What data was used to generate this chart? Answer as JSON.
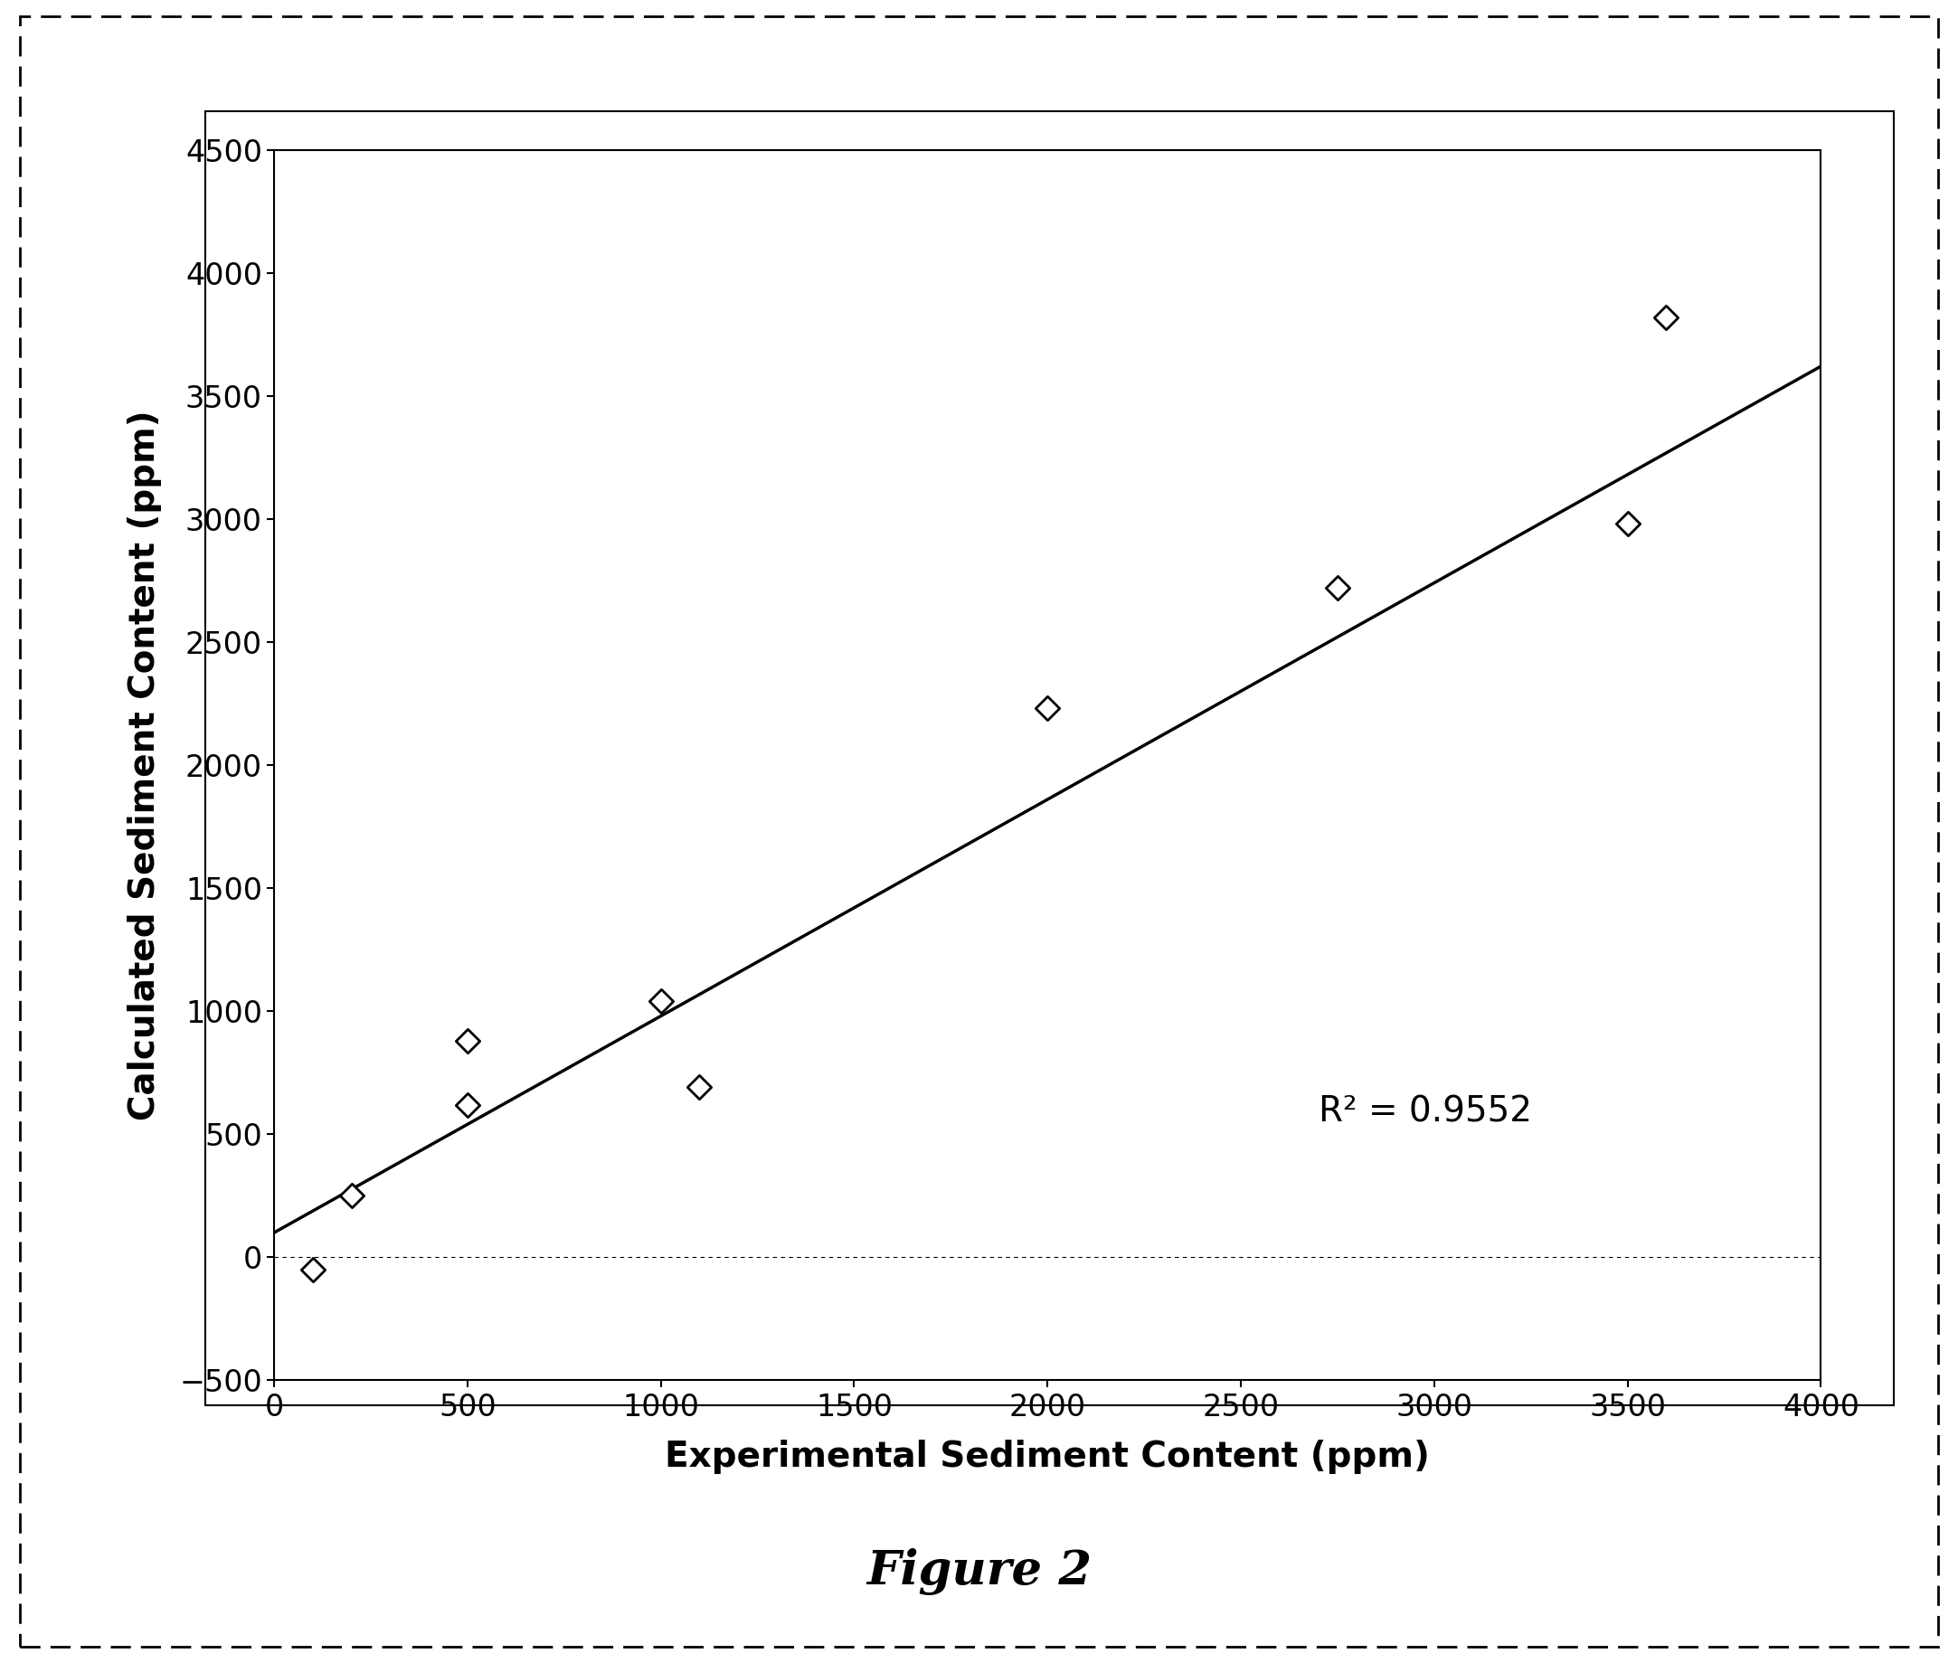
{
  "scatter_x": [
    100,
    200,
    500,
    500,
    1000,
    1100,
    2000,
    2750,
    3500,
    3600
  ],
  "scatter_y": [
    -50,
    250,
    620,
    880,
    1040,
    690,
    2230,
    2720,
    2980,
    3820
  ],
  "line_x_start": 0,
  "line_x_end": 4000,
  "line_slope": 0.88,
  "line_intercept": 100,
  "r_squared": "R² = 0.9552",
  "r2_x": 2700,
  "r2_y": 550,
  "xlabel": "Experimental Sediment Content (ppm)",
  "ylabel": "Calculated Sediment Content (ppm)",
  "figure_label": "Figure 2",
  "xlim": [
    0,
    4000
  ],
  "ylim": [
    -500,
    4500
  ],
  "xticks": [
    0,
    500,
    1000,
    1500,
    2000,
    2500,
    3000,
    3500,
    4000
  ],
  "yticks": [
    -500,
    0,
    500,
    1000,
    1500,
    2000,
    2500,
    3000,
    3500,
    4000,
    4500
  ],
  "marker_facecolor": "white",
  "marker_edgecolor": "black",
  "line_color": "black",
  "background_color": "white",
  "axis_label_fontsize": 28,
  "tick_label_fontsize": 24,
  "annotation_fontsize": 28,
  "figure_label_fontsize": 38,
  "marker_size": 180,
  "marker_linewidth": 2.0,
  "line_linewidth": 2.5,
  "outer_border_linewidth": 2.0
}
